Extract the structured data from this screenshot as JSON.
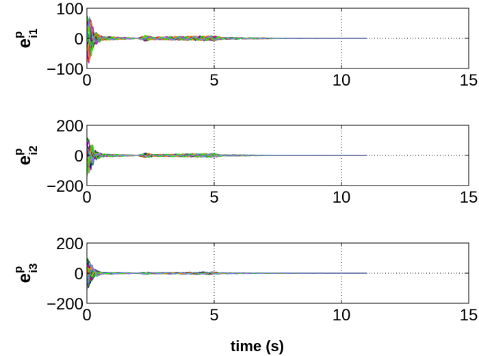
{
  "chart_data": [
    {
      "type": "line",
      "ylabel": {
        "base": "e",
        "sup": "p",
        "sub": "i1"
      },
      "xlabel": "",
      "xlim": [
        0,
        15
      ],
      "ylim": [
        -100,
        100
      ],
      "xticks": [
        "0",
        "5",
        "10",
        "15"
      ],
      "yticks": [
        "-100",
        "0",
        "100"
      ],
      "grid": "dotted",
      "envelope": {
        "t": [
          0,
          0.1,
          0.3,
          0.6,
          2.0,
          2.3,
          2.6,
          5.0,
          5.3,
          8.0,
          11.0
        ],
        "amplitude": [
          100,
          90,
          25,
          8,
          1,
          12,
          5,
          10,
          4,
          0.5,
          0
        ]
      },
      "data_end": 11
    },
    {
      "type": "line",
      "ylabel": {
        "base": "e",
        "sup": "p",
        "sub": "i2"
      },
      "xlabel": "",
      "xlim": [
        0,
        15
      ],
      "ylim": [
        -200,
        200
      ],
      "xticks": [
        "0",
        "5",
        "10",
        "15"
      ],
      "yticks": [
        "-200",
        "0",
        "200"
      ],
      "grid": "dotted",
      "envelope": {
        "t": [
          0,
          0.1,
          0.3,
          0.6,
          2.0,
          2.3,
          2.6,
          5.0,
          5.3,
          8.0,
          11.0
        ],
        "amplitude": [
          150,
          130,
          40,
          12,
          2,
          20,
          8,
          15,
          5,
          1,
          0
        ]
      },
      "data_end": 11
    },
    {
      "type": "line",
      "ylabel": {
        "base": "e",
        "sup": "p",
        "sub": "i3"
      },
      "xlabel": "time (s)",
      "xlim": [
        0,
        15
      ],
      "ylim": [
        -200,
        200
      ],
      "xticks": [
        "0",
        "5",
        "10",
        "15"
      ],
      "yticks": [
        "-200",
        "0",
        "200"
      ],
      "grid": "dotted",
      "envelope": {
        "t": [
          0,
          0.1,
          0.3,
          0.6,
          2.0,
          2.3,
          2.6,
          5.0,
          5.3,
          8.0,
          11.0
        ],
        "amplitude": [
          120,
          100,
          30,
          8,
          2,
          10,
          5,
          10,
          4,
          1,
          0
        ]
      },
      "data_end": 11
    }
  ],
  "colors": [
    "#0000ff",
    "#008000",
    "#ff0000",
    "#00bfbf",
    "#bf00bf",
    "#bfbf00",
    "#404040",
    "#ff8000",
    "#00ff00",
    "#8080ff"
  ]
}
